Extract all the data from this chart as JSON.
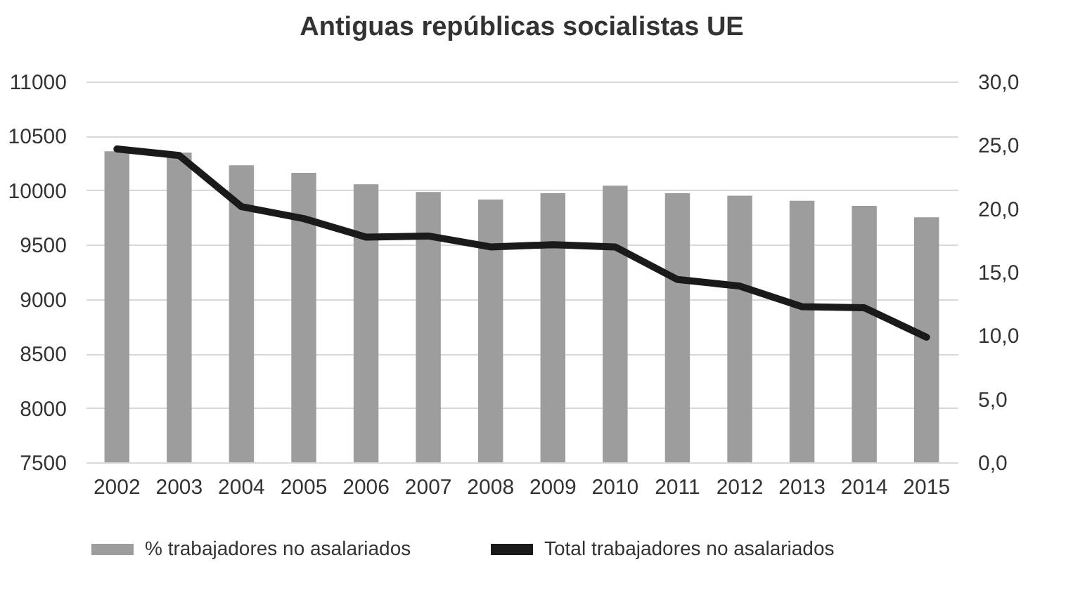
{
  "chart_data": {
    "type": "bar",
    "title": "Antiguas repúblicas socialistas UE",
    "categories": [
      "2002",
      "2003",
      "2004",
      "2005",
      "2006",
      "2007",
      "2008",
      "2009",
      "2010",
      "2011",
      "2012",
      "2013",
      "2014",
      "2015"
    ],
    "series": [
      {
        "name": "% trabajadores no asalariados",
        "axis": "y2",
        "color": "#9d9d9d",
        "values": [
          24.5,
          24.4,
          23.4,
          22.8,
          21.9,
          21.3,
          20.7,
          21.2,
          21.8,
          21.2,
          21.0,
          20.6,
          20.2,
          19.3
        ]
      },
      {
        "name": "Total trabajadores no asalariados",
        "type": "line",
        "color": "#1a1a1a",
        "values": [
          10380,
          10320,
          9850,
          9740,
          9570,
          9580,
          9480,
          9500,
          9480,
          9180,
          9120,
          8930,
          8920,
          8650
        ]
      }
    ],
    "ylim": [
      7500,
      11000
    ],
    "yticks": [
      7500,
      8000,
      8500,
      9000,
      9500,
      10000,
      10500,
      11000
    ],
    "y2lim": [
      0,
      30
    ],
    "y2ticks": [
      {
        "value": 0,
        "label": "0,0"
      },
      {
        "value": 5,
        "label": "5,0"
      },
      {
        "value": 10,
        "label": "10,0"
      },
      {
        "value": 15,
        "label": "15,0"
      },
      {
        "value": 20,
        "label": "20,0"
      },
      {
        "value": 25,
        "label": "25,0"
      },
      {
        "value": 30,
        "label": "30,0"
      }
    ],
    "grid": "y",
    "legend": "bottom"
  }
}
